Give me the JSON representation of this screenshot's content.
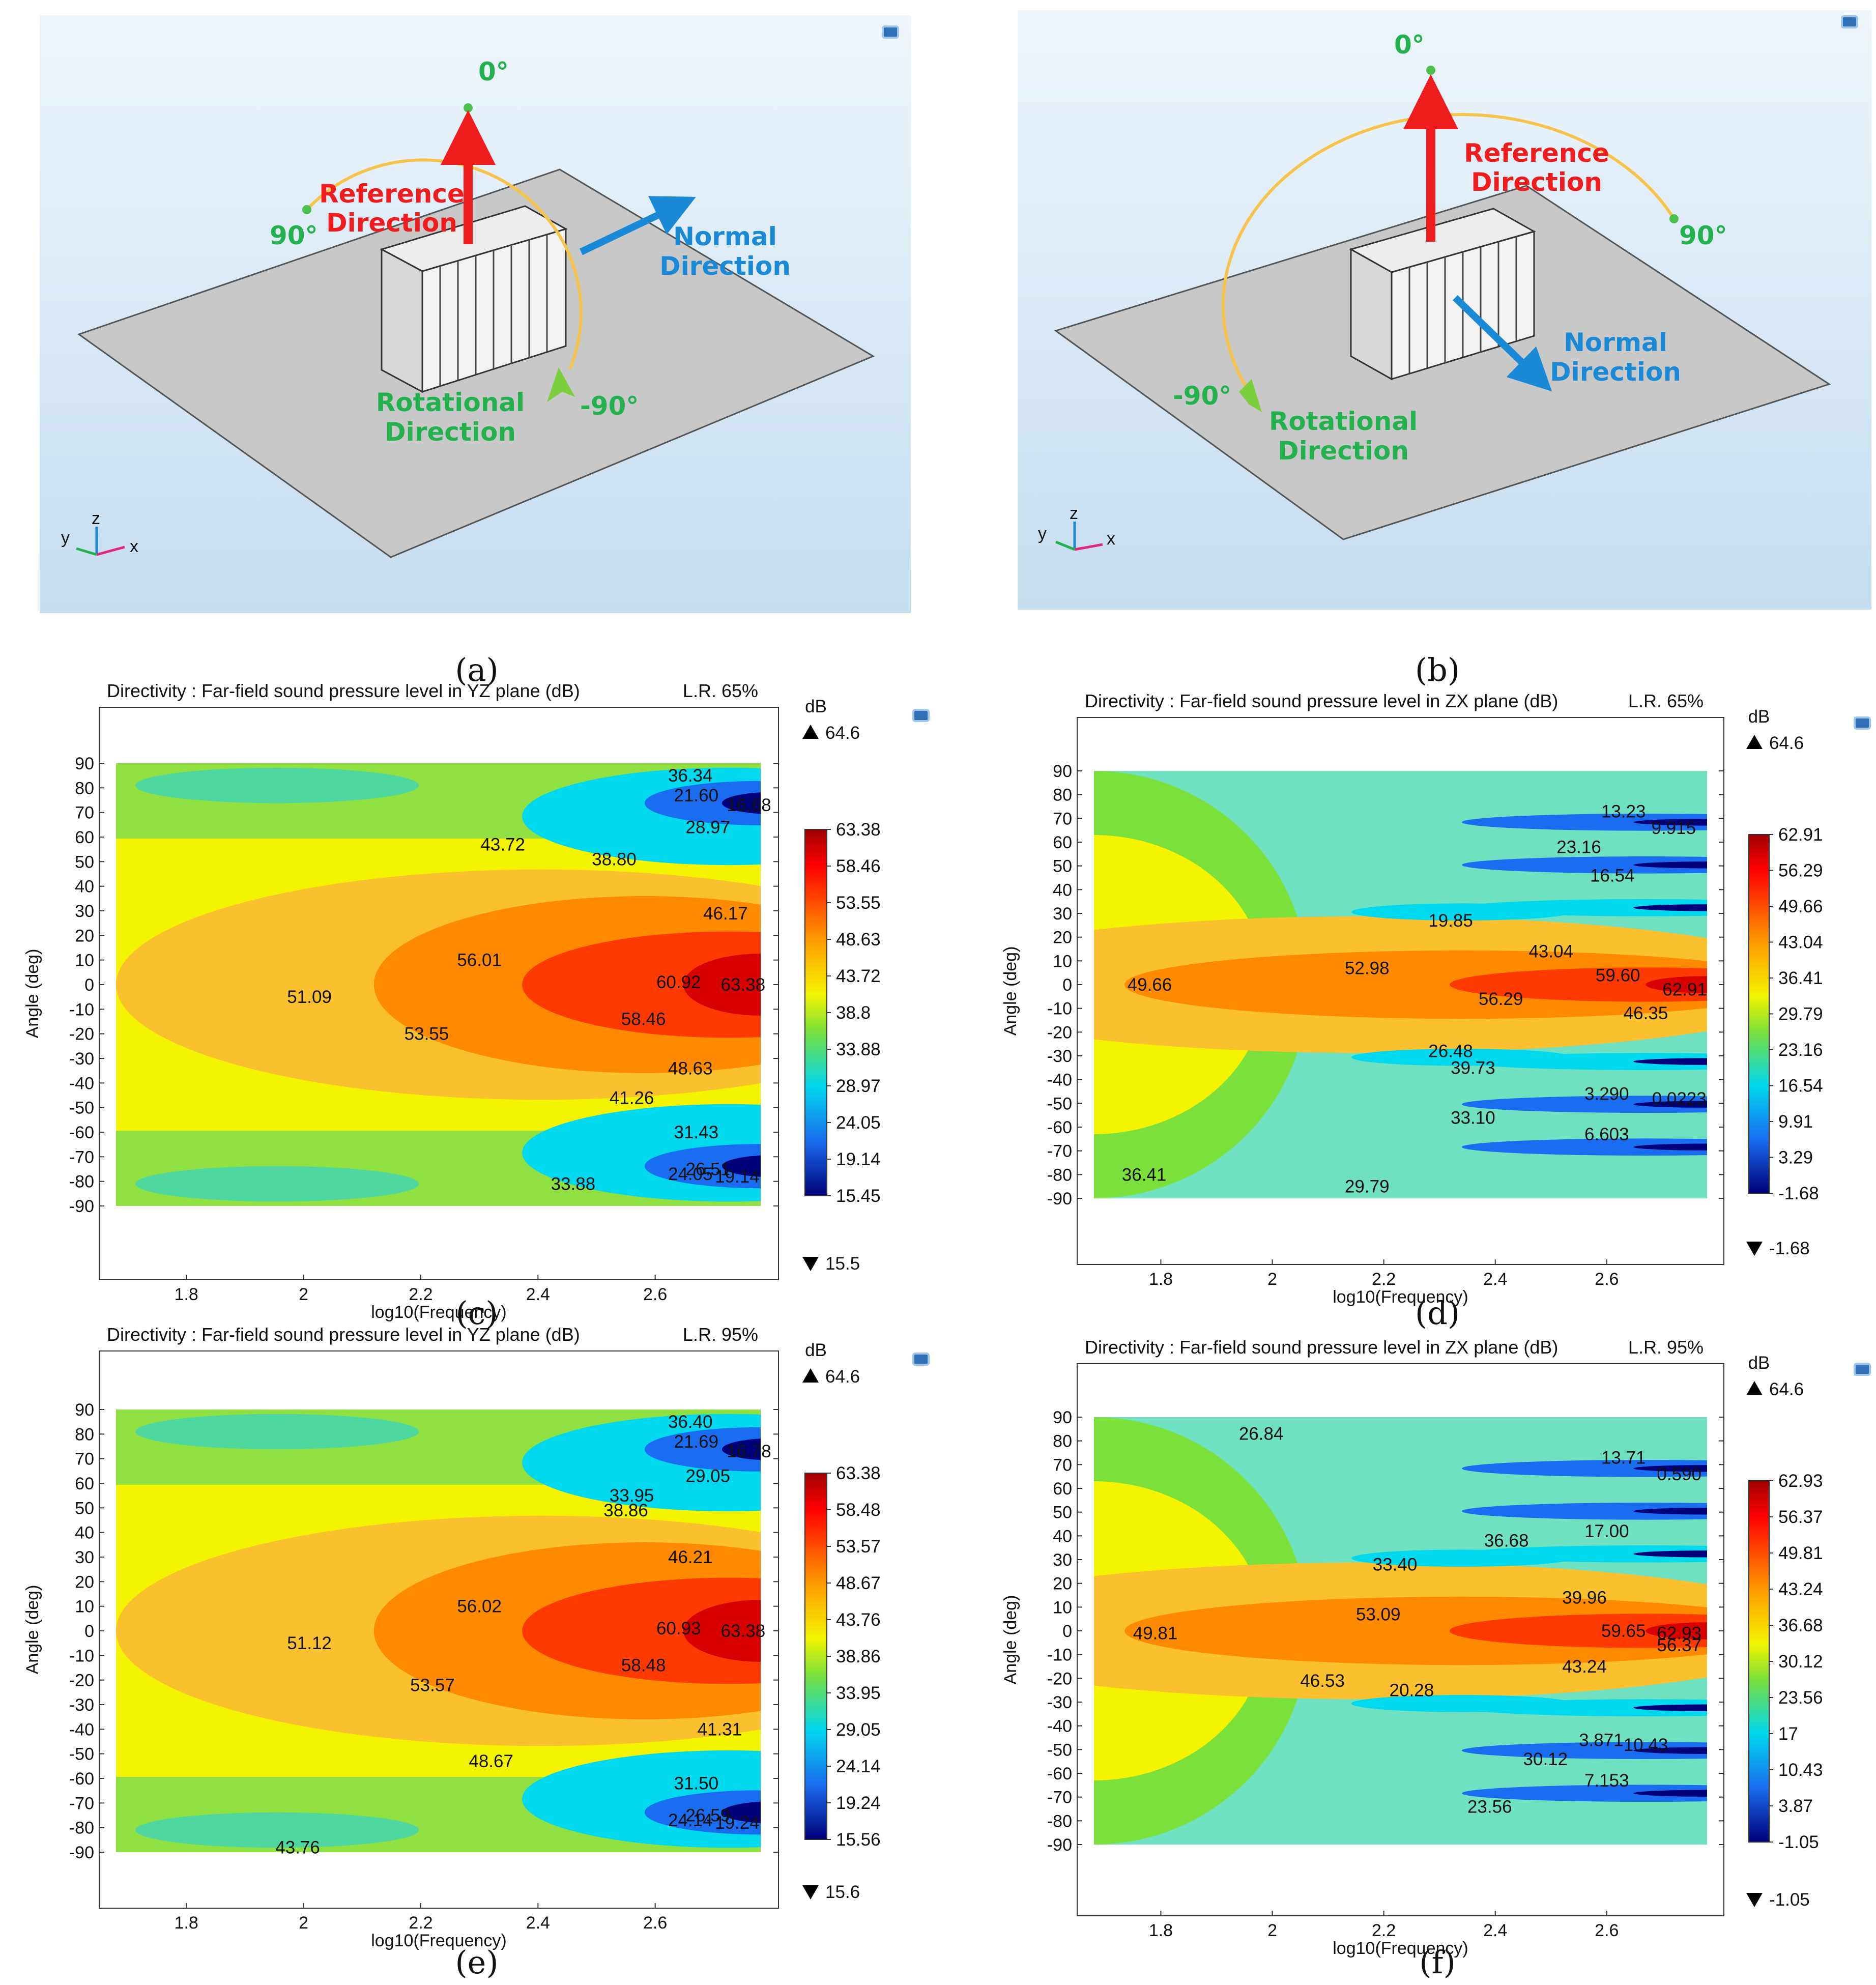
{
  "figure": {
    "captions": [
      "(a)",
      "(b)",
      "(c)",
      "(d)",
      "(e)",
      "(f)"
    ]
  },
  "diagram_a": {
    "angle_top": "0°",
    "angle_left": "90°",
    "angle_bottom": "-90°",
    "reference_label": [
      "Reference",
      "Direction"
    ],
    "normal_label": [
      "Normal",
      "Direction"
    ],
    "rotation_label": [
      "Rotational",
      "Direction"
    ],
    "axes": {
      "y": "y",
      "z": "z",
      "x": "x"
    }
  },
  "diagram_b": {
    "angle_top": "0°",
    "angle_right": "90°",
    "angle_left": "-90°",
    "reference_label": [
      "Reference",
      "Direction"
    ],
    "normal_label": [
      "Normal",
      "Direction"
    ],
    "rotation_label": [
      "Rotational",
      "Direction"
    ],
    "axes": {
      "y": "y",
      "z": "z",
      "x": "x"
    }
  },
  "colors": {
    "viewport_top": "#eef5fb",
    "viewport_bottom": "#c7dff0",
    "plate": "#c8c8c8",
    "reference_arrow": "#ee1c1c",
    "normal_arrow": "#1b8ad6",
    "rotation_arc": "#f6c44a",
    "angle_text": "#22b14c"
  },
  "chart_data": [
    {
      "type": "heatmap",
      "title": "Directivity : Far-field sound pressure level in YZ plane (dB)",
      "note": "L.R. 65%",
      "xlabel": "log10(Frequency)",
      "ylabel": "Angle (deg)",
      "xlim": [
        1.68,
        2.78
      ],
      "ylim": [
        -90,
        90
      ],
      "xticks": [
        "1.8",
        "2",
        "2.2",
        "2.4",
        "2.6"
      ],
      "yticks": [
        "90",
        "80",
        "70",
        "60",
        "50",
        "40",
        "30",
        "20",
        "10",
        "0",
        "-10",
        "-20",
        "-30",
        "-40",
        "-50",
        "-60",
        "-70",
        "-80",
        "-90"
      ],
      "colorbar": {
        "unit": "dB",
        "max_label": "64.6",
        "min_label": "15.5",
        "levels": [
          "63.38",
          "58.46",
          "53.55",
          "48.63",
          "43.72",
          "38.8",
          "33.88",
          "28.97",
          "24.05",
          "19.14",
          "15.45"
        ]
      },
      "labels": [
        {
          "text": "36.34",
          "x": 2.66,
          "y": 85
        },
        {
          "text": "21.60",
          "x": 2.67,
          "y": 77
        },
        {
          "text": "16.68",
          "x": 2.76,
          "y": 73
        },
        {
          "text": "28.97",
          "x": 2.69,
          "y": 64
        },
        {
          "text": "43.72",
          "x": 2.34,
          "y": 57
        },
        {
          "text": "38.80",
          "x": 2.53,
          "y": 51
        },
        {
          "text": "46.17",
          "x": 2.72,
          "y": 29
        },
        {
          "text": "56.01",
          "x": 2.3,
          "y": 10
        },
        {
          "text": "51.09",
          "x": 2.01,
          "y": -5
        },
        {
          "text": "60.92",
          "x": 2.64,
          "y": 1
        },
        {
          "text": "63.38",
          "x": 2.75,
          "y": 0
        },
        {
          "text": "58.46",
          "x": 2.58,
          "y": -14
        },
        {
          "text": "53.55",
          "x": 2.21,
          "y": -20
        },
        {
          "text": "48.63",
          "x": 2.66,
          "y": -34
        },
        {
          "text": "41.26",
          "x": 2.56,
          "y": -46
        },
        {
          "text": "31.43",
          "x": 2.67,
          "y": -60
        },
        {
          "text": "26.51",
          "x": 2.69,
          "y": -75
        },
        {
          "text": "24.05",
          "x": 2.66,
          "y": -77
        },
        {
          "text": "19.14",
          "x": 2.74,
          "y": -78
        },
        {
          "text": "33.88",
          "x": 2.46,
          "y": -81
        }
      ]
    },
    {
      "type": "heatmap",
      "title": "Directivity : Far-field sound pressure level in ZX plane (dB)",
      "note": "L.R. 65%",
      "xlabel": "log10(Frequency)",
      "ylabel": "Angle (deg)",
      "xlim": [
        1.68,
        2.78
      ],
      "ylim": [
        -90,
        90
      ],
      "xticks": [
        "1.8",
        "2",
        "2.2",
        "2.4",
        "2.6"
      ],
      "yticks": [
        "90",
        "80",
        "70",
        "60",
        "50",
        "40",
        "30",
        "20",
        "10",
        "0",
        "-10",
        "-20",
        "-30",
        "-40",
        "-50",
        "-60",
        "-70",
        "-80",
        "-90"
      ],
      "colorbar": {
        "unit": "dB",
        "max_label": "64.6",
        "min_label": "-1.68",
        "levels": [
          "62.91",
          "56.29",
          "49.66",
          "43.04",
          "36.41",
          "29.79",
          "23.16",
          "16.54",
          "9.91",
          "3.29",
          "-1.68"
        ]
      },
      "labels": [
        {
          "text": "13.23",
          "x": 2.63,
          "y": 73
        },
        {
          "text": "9.915",
          "x": 2.72,
          "y": 66
        },
        {
          "text": "23.16",
          "x": 2.55,
          "y": 58
        },
        {
          "text": "16.54",
          "x": 2.61,
          "y": 46
        },
        {
          "text": "19.85",
          "x": 2.32,
          "y": 27
        },
        {
          "text": "43.04",
          "x": 2.5,
          "y": 14
        },
        {
          "text": "52.98",
          "x": 2.17,
          "y": 7
        },
        {
          "text": "49.66",
          "x": 1.78,
          "y": 0
        },
        {
          "text": "59.60",
          "x": 2.62,
          "y": 4
        },
        {
          "text": "62.91",
          "x": 2.74,
          "y": -2
        },
        {
          "text": "56.29",
          "x": 2.41,
          "y": -6
        },
        {
          "text": "46.35",
          "x": 2.67,
          "y": -12
        },
        {
          "text": "26.48",
          "x": 2.32,
          "y": -28
        },
        {
          "text": "39.73",
          "x": 2.36,
          "y": -35
        },
        {
          "text": "3.290",
          "x": 2.6,
          "y": -46
        },
        {
          "text": "0.0223",
          "x": 2.73,
          "y": -48
        },
        {
          "text": "33.10",
          "x": 2.36,
          "y": -56
        },
        {
          "text": "6.603",
          "x": 2.6,
          "y": -63
        },
        {
          "text": "36.41",
          "x": 1.77,
          "y": -80
        },
        {
          "text": "29.79",
          "x": 2.17,
          "y": -85
        }
      ]
    },
    {
      "type": "heatmap",
      "title": "Directivity : Far-field sound pressure level in YZ plane (dB)",
      "note": "L.R. 95%",
      "xlabel": "log10(Frequency)",
      "ylabel": "Angle (deg)",
      "xlim": [
        1.68,
        2.78
      ],
      "ylim": [
        -90,
        90
      ],
      "xticks": [
        "1.8",
        "2",
        "2.2",
        "2.4",
        "2.6"
      ],
      "yticks": [
        "90",
        "80",
        "70",
        "60",
        "50",
        "40",
        "30",
        "20",
        "10",
        "0",
        "-10",
        "-20",
        "-30",
        "-40",
        "-50",
        "-60",
        "-70",
        "-80",
        "-90"
      ],
      "colorbar": {
        "unit": "dB",
        "max_label": "64.6",
        "min_label": "15.6",
        "levels": [
          "63.38",
          "58.48",
          "53.57",
          "48.67",
          "43.76",
          "38.86",
          "33.95",
          "29.05",
          "24.14",
          "19.24",
          "15.56"
        ]
      },
      "labels": [
        {
          "text": "36.40",
          "x": 2.66,
          "y": 85
        },
        {
          "text": "21.69",
          "x": 2.67,
          "y": 77
        },
        {
          "text": "16.78",
          "x": 2.76,
          "y": 73
        },
        {
          "text": "29.05",
          "x": 2.69,
          "y": 63
        },
        {
          "text": "33.95",
          "x": 2.56,
          "y": 55
        },
        {
          "text": "38.86",
          "x": 2.55,
          "y": 49
        },
        {
          "text": "46.21",
          "x": 2.66,
          "y": 30
        },
        {
          "text": "56.02",
          "x": 2.3,
          "y": 10
        },
        {
          "text": "51.12",
          "x": 2.01,
          "y": -5
        },
        {
          "text": "60.93",
          "x": 2.64,
          "y": 1
        },
        {
          "text": "63.38",
          "x": 2.75,
          "y": 0
        },
        {
          "text": "58.48",
          "x": 2.58,
          "y": -14
        },
        {
          "text": "53.57",
          "x": 2.22,
          "y": -22
        },
        {
          "text": "41.31",
          "x": 2.71,
          "y": -40
        },
        {
          "text": "48.67",
          "x": 2.32,
          "y": -53
        },
        {
          "text": "31.50",
          "x": 2.67,
          "y": -62
        },
        {
          "text": "26.59",
          "x": 2.69,
          "y": -75
        },
        {
          "text": "24.14",
          "x": 2.66,
          "y": -77
        },
        {
          "text": "19.24",
          "x": 2.74,
          "y": -78
        },
        {
          "text": "43.76",
          "x": 1.99,
          "y": -88
        }
      ]
    },
    {
      "type": "heatmap",
      "title": "Directivity : Far-field sound pressure level in ZX plane (dB)",
      "note": "L.R. 95%",
      "xlabel": "log10(Frequency)",
      "ylabel": "Angle (deg)",
      "xlim": [
        1.68,
        2.78
      ],
      "ylim": [
        -90,
        90
      ],
      "xticks": [
        "1.8",
        "2",
        "2.2",
        "2.4",
        "2.6"
      ],
      "yticks": [
        "90",
        "80",
        "70",
        "60",
        "50",
        "40",
        "30",
        "20",
        "10",
        "0",
        "-10",
        "-20",
        "-30",
        "-40",
        "-50",
        "-60",
        "-70",
        "-80",
        "-90"
      ],
      "colorbar": {
        "unit": "dB",
        "max_label": "64.6",
        "min_label": "-1.05",
        "levels": [
          "62.93",
          "56.37",
          "49.81",
          "43.24",
          "36.68",
          "30.12",
          "23.56",
          "17",
          "10.43",
          "3.87",
          "-1.05"
        ]
      },
      "labels": [
        {
          "text": "26.84",
          "x": 1.98,
          "y": 83
        },
        {
          "text": "13.71",
          "x": 2.63,
          "y": 73
        },
        {
          "text": "0.590",
          "x": 2.73,
          "y": 66
        },
        {
          "text": "36.68",
          "x": 2.42,
          "y": 38
        },
        {
          "text": "17.00",
          "x": 2.6,
          "y": 42
        },
        {
          "text": "33.40",
          "x": 2.22,
          "y": 28
        },
        {
          "text": "39.96",
          "x": 2.56,
          "y": 14
        },
        {
          "text": "53.09",
          "x": 2.19,
          "y": 7
        },
        {
          "text": "49.81",
          "x": 1.79,
          "y": -1
        },
        {
          "text": "59.65",
          "x": 2.63,
          "y": 0
        },
        {
          "text": "62.93",
          "x": 2.73,
          "y": -1
        },
        {
          "text": "56.37",
          "x": 2.73,
          "y": -6
        },
        {
          "text": "43.24",
          "x": 2.56,
          "y": -15
        },
        {
          "text": "46.53",
          "x": 2.09,
          "y": -21
        },
        {
          "text": "20.28",
          "x": 2.25,
          "y": -25
        },
        {
          "text": "3.871",
          "x": 2.59,
          "y": -46
        },
        {
          "text": "10.43",
          "x": 2.67,
          "y": -48
        },
        {
          "text": "30.12",
          "x": 2.49,
          "y": -54
        },
        {
          "text": "7.153",
          "x": 2.6,
          "y": -63
        },
        {
          "text": "23.56",
          "x": 2.39,
          "y": -74
        }
      ]
    }
  ]
}
